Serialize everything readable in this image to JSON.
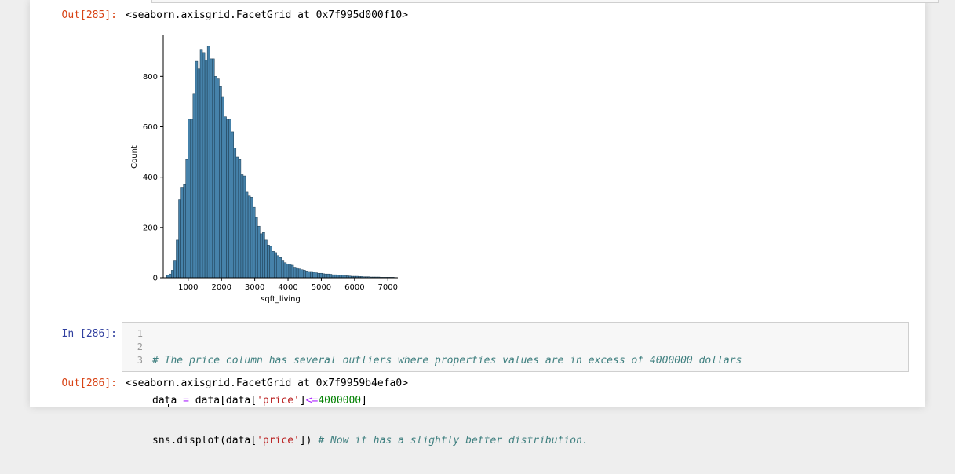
{
  "cells": {
    "out285": {
      "prompt": "Out[285]:",
      "text": "<seaborn.axisgrid.FacetGrid at 0x7f995d000f10>"
    },
    "in286": {
      "prompt": "In [286]:",
      "line_numbers": [
        "1",
        "2",
        "3"
      ],
      "line1_comment": "# The price column has several outliers where properties values are in excess of 4000000 dollars",
      "line2_a": "data ",
      "line2_op": "=",
      "line2_b": " data[data[",
      "line2_str": "'price'",
      "line2_c": "]",
      "line2_op2": "<=",
      "line2_num": "4000000",
      "line2_d": "]",
      "line3_a": "sns.displot(data[",
      "line3_str": "'price'",
      "line3_b": "]) ",
      "line3_comment": "# Now it has a slightly better distribution."
    },
    "out286": {
      "prompt": "Out[286]:",
      "text": "<seaborn.axisgrid.FacetGrid at 0x7f9959b4efa0>"
    }
  },
  "chart_data": {
    "type": "bar",
    "xlabel": "sqft_living",
    "ylabel": "Count",
    "xlim": [
      250,
      7300
    ],
    "ylim": [
      0,
      960
    ],
    "xticks": [
      1000,
      2000,
      3000,
      4000,
      5000,
      6000,
      7000
    ],
    "yticks": [
      0,
      200,
      400,
      600,
      800
    ],
    "bin_start": 350,
    "bin_width": 72,
    "values": [
      10,
      15,
      30,
      70,
      150,
      310,
      360,
      370,
      470,
      630,
      630,
      730,
      860,
      830,
      905,
      895,
      865,
      920,
      870,
      870,
      800,
      790,
      760,
      720,
      640,
      630,
      630,
      580,
      515,
      480,
      470,
      410,
      405,
      340,
      325,
      320,
      280,
      240,
      205,
      175,
      180,
      150,
      130,
      125,
      105,
      100,
      88,
      80,
      70,
      60,
      55,
      55,
      50,
      42,
      40,
      35,
      32,
      30,
      27,
      25,
      25,
      22,
      20,
      18,
      18,
      16,
      15,
      15,
      14,
      12,
      12,
      11,
      10,
      10,
      8,
      8,
      7,
      6,
      6,
      6,
      5,
      5,
      4,
      4,
      4,
      3,
      3,
      3,
      3,
      2,
      2,
      2,
      2,
      2,
      2,
      1
    ]
  }
}
